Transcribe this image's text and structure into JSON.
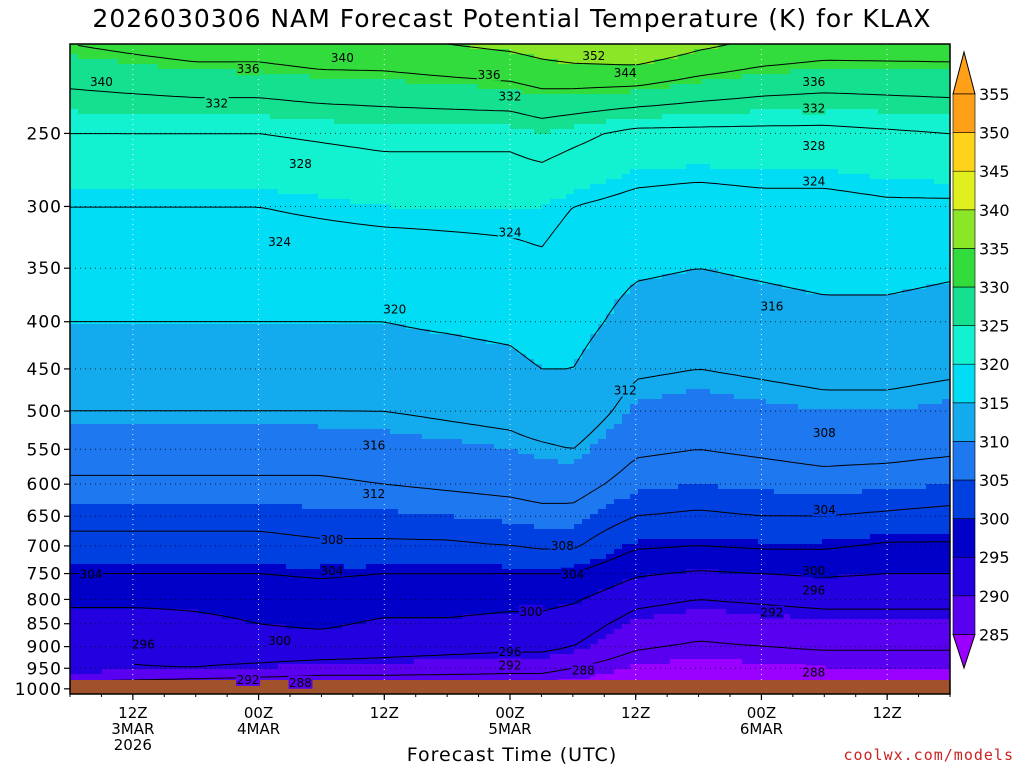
{
  "chart_data": {
    "type": "heatmap",
    "title": "2026030306 NAM Forecast Potential Temperature (K) for KLAX",
    "xlabel": "Forecast Time (UTC)",
    "ylabel": "",
    "credit": "coolwx.com/models",
    "x_range_hours": [
      0,
      84
    ],
    "x_ticks": [
      {
        "hour": 6,
        "lines": [
          "12Z",
          "3MAR",
          "2026"
        ]
      },
      {
        "hour": 18,
        "lines": [
          "00Z",
          "4MAR"
        ]
      },
      {
        "hour": 30,
        "lines": [
          "12Z"
        ]
      },
      {
        "hour": 42,
        "lines": [
          "00Z",
          "5MAR"
        ]
      },
      {
        "hour": 54,
        "lines": [
          "12Z"
        ]
      },
      {
        "hour": 66,
        "lines": [
          "00Z",
          "6MAR"
        ]
      },
      {
        "hour": 78,
        "lines": [
          "12Z"
        ]
      }
    ],
    "y_axis": {
      "scale": "log",
      "top": 200,
      "bottom": 1013,
      "reversed": true
    },
    "y_ticks": [
      250,
      300,
      350,
      400,
      450,
      500,
      550,
      600,
      650,
      700,
      750,
      800,
      850,
      900,
      950,
      1000
    ],
    "colorbar": {
      "levels": [
        285,
        290,
        295,
        300,
        305,
        310,
        315,
        320,
        325,
        330,
        335,
        340,
        345,
        350,
        355
      ],
      "colors": [
        "#9a00ff",
        "#5a00f0",
        "#2200e0",
        "#0000c8",
        "#0040e0",
        "#1e78f0",
        "#14aaee",
        "#00ddf5",
        "#12f2d0",
        "#14e090",
        "#32dc3c",
        "#8ce628",
        "#e0f01e",
        "#ffd31c",
        "#ffa018"
      ]
    },
    "contour_interval": 4,
    "profiles_hours": [
      0,
      6,
      12,
      18,
      24,
      30,
      36,
      42,
      45,
      48,
      54,
      60,
      66,
      72,
      78,
      84
    ],
    "profiles_pressure": [
      1013,
      1000,
      975,
      950,
      925,
      900,
      850,
      800,
      750,
      700,
      650,
      600,
      550,
      500,
      450,
      400,
      350,
      300,
      250,
      200
    ],
    "profiles": [
      [
        288.6,
        288.6,
        293,
        296,
        296,
        297,
        298,
        301,
        304,
        307,
        309,
        311.5,
        313.5,
        316,
        318,
        320,
        322,
        324,
        328,
        336
      ],
      [
        288.6,
        288.6,
        292.5,
        296,
        296,
        297,
        298,
        301,
        304,
        307,
        309,
        311.5,
        313.5,
        316,
        318,
        320,
        322,
        324,
        328,
        337
      ],
      [
        288.6,
        288.6,
        292,
        296,
        297,
        298,
        299,
        301,
        304,
        307,
        309,
        311.5,
        313.5,
        316,
        318,
        320,
        322,
        324,
        328,
        338
      ],
      [
        288.6,
        288.6,
        291.5,
        295,
        297,
        298.5,
        300,
        301.5,
        304,
        307,
        309,
        311.5,
        313.5,
        316,
        318,
        320,
        322,
        324,
        328,
        338
      ],
      [
        288.6,
        288.6,
        291,
        294,
        296.5,
        298.5,
        300.5,
        302,
        304.5,
        307.5,
        309.5,
        311.5,
        313.5,
        316,
        318,
        320,
        322,
        324.5,
        328.5,
        339
      ],
      [
        288.6,
        288.6,
        291,
        294,
        296,
        298,
        299.5,
        301.5,
        304,
        307.5,
        309.5,
        312,
        314,
        316,
        318.5,
        320,
        322,
        325,
        329,
        339
      ],
      [
        288.6,
        288.6,
        291,
        293.5,
        295.5,
        297.5,
        299.5,
        301.5,
        304,
        307.5,
        310,
        312.5,
        314.5,
        316.5,
        318.5,
        320.5,
        322.5,
        325,
        329,
        340
      ],
      [
        288.6,
        288.6,
        291,
        293,
        295,
        297,
        299,
        301,
        304,
        308,
        310.5,
        313,
        315,
        317,
        319,
        321,
        323,
        325,
        329,
        341
      ],
      [
        288.6,
        288.6,
        291,
        293,
        295,
        297,
        299,
        301,
        304,
        308.5,
        311,
        313.5,
        315.5,
        318,
        320,
        322,
        323.5,
        325,
        330,
        342
      ],
      [
        288.6,
        288.6,
        290,
        292,
        294,
        296,
        298,
        300.5,
        304,
        308.5,
        311,
        313.5,
        316,
        318.5,
        320,
        321.5,
        322.5,
        324,
        329,
        343
      ],
      [
        288.6,
        288.6,
        288.5,
        289.5,
        291,
        292.5,
        294.5,
        297,
        300.5,
        304.5,
        308,
        310.5,
        312.5,
        314.5,
        316.5,
        318.5,
        320.5,
        323,
        327,
        344
      ],
      [
        288.6,
        288.6,
        288,
        289,
        290,
        291.5,
        293.5,
        296,
        299.5,
        304,
        307.5,
        310,
        312,
        314,
        316,
        318,
        320,
        322.5,
        327,
        341
      ],
      [
        288.6,
        288.6,
        288.5,
        289.5,
        290.5,
        292,
        294,
        296.5,
        300,
        304.5,
        308,
        310.5,
        312.5,
        314.5,
        316.5,
        318.5,
        320.5,
        323,
        327,
        339
      ],
      [
        288.6,
        288.6,
        289,
        290,
        291,
        292.5,
        294.5,
        297,
        300.5,
        304.5,
        308,
        311,
        313,
        315,
        317,
        319,
        321,
        323,
        327,
        338
      ],
      [
        288.6,
        288.6,
        289,
        290,
        291,
        292.5,
        294.5,
        297,
        300,
        303.5,
        307.5,
        310.5,
        313,
        315,
        317,
        319,
        321,
        323.5,
        327.5,
        338
      ],
      [
        288.6,
        288.6,
        289,
        290,
        291,
        292.5,
        294.5,
        297,
        300,
        303.5,
        307,
        310,
        312.5,
        314.5,
        316.5,
        318.5,
        320.5,
        323.5,
        328,
        338
      ]
    ],
    "contour_labels": [
      {
        "text": "340",
        "hour": 3,
        "p": 220
      },
      {
        "text": "336",
        "hour": 17,
        "p": 213
      },
      {
        "text": "340",
        "hour": 26,
        "p": 207
      },
      {
        "text": "352",
        "hour": 50,
        "p": 206
      },
      {
        "text": "336",
        "hour": 40,
        "p": 216
      },
      {
        "text": "344",
        "hour": 53,
        "p": 215
      },
      {
        "text": "336",
        "hour": 71,
        "p": 220
      },
      {
        "text": "332",
        "hour": 14,
        "p": 232
      },
      {
        "text": "332",
        "hour": 42,
        "p": 228
      },
      {
        "text": "332",
        "hour": 71,
        "p": 235
      },
      {
        "text": "328",
        "hour": 22,
        "p": 270
      },
      {
        "text": "328",
        "hour": 71,
        "p": 258
      },
      {
        "text": "324",
        "hour": 71,
        "p": 282
      },
      {
        "text": "324",
        "hour": 20,
        "p": 328
      },
      {
        "text": "324",
        "hour": 42,
        "p": 320
      },
      {
        "text": "320",
        "hour": 31,
        "p": 388
      },
      {
        "text": "316",
        "hour": 67,
        "p": 385
      },
      {
        "text": "312",
        "hour": 53,
        "p": 475
      },
      {
        "text": "316",
        "hour": 29,
        "p": 545
      },
      {
        "text": "308",
        "hour": 72,
        "p": 528
      },
      {
        "text": "312",
        "hour": 29,
        "p": 615
      },
      {
        "text": "304",
        "hour": 72,
        "p": 640
      },
      {
        "text": "308",
        "hour": 25,
        "p": 690
      },
      {
        "text": "308",
        "hour": 47,
        "p": 700
      },
      {
        "text": "304",
        "hour": 2,
        "p": 752
      },
      {
        "text": "304",
        "hour": 25,
        "p": 745
      },
      {
        "text": "304",
        "hour": 48,
        "p": 752
      },
      {
        "text": "300",
        "hour": 71,
        "p": 745
      },
      {
        "text": "296",
        "hour": 71,
        "p": 782
      },
      {
        "text": "300",
        "hour": 44,
        "p": 825
      },
      {
        "text": "292",
        "hour": 67,
        "p": 827
      },
      {
        "text": "296",
        "hour": 7,
        "p": 895
      },
      {
        "text": "300",
        "hour": 20,
        "p": 888
      },
      {
        "text": "296",
        "hour": 42,
        "p": 912
      },
      {
        "text": "292",
        "hour": 42,
        "p": 943
      },
      {
        "text": "292",
        "hour": 17,
        "p": 978
      },
      {
        "text": "288",
        "hour": 22,
        "p": 985
      },
      {
        "text": "288",
        "hour": 49,
        "p": 955
      },
      {
        "text": "288",
        "hour": 71,
        "p": 960
      }
    ]
  }
}
